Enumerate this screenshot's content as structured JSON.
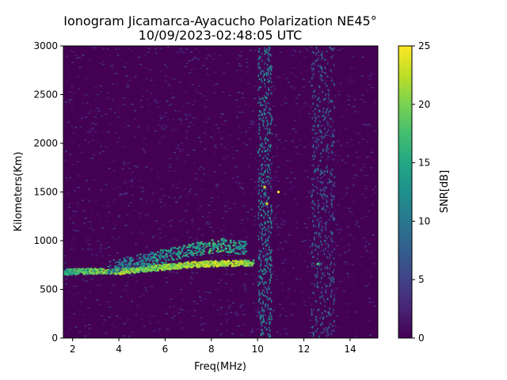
{
  "chart_data": {
    "type": "heatmap",
    "title_line1": "Ionogram Jicamarca-Ayacucho Polarization NE45°",
    "title_line2": "10/09/2023-02:48:05 UTC",
    "xlabel": "Freq(MHz)",
    "ylabel": "Kilometers(Km)",
    "xlim": [
      1.6,
      15.2
    ],
    "ylim": [
      0,
      3000
    ],
    "x_ticks": [
      2,
      4,
      6,
      8,
      10,
      12,
      14
    ],
    "y_ticks": [
      0,
      500,
      1000,
      1500,
      2000,
      2500,
      3000
    ],
    "colorbar": {
      "label": "SNR[dB]",
      "range": [
        0,
        25
      ],
      "ticks": [
        0,
        5,
        10,
        15,
        20,
        25
      ],
      "colormap": "viridis"
    },
    "background_snr_db": [
      0,
      5
    ],
    "traces": [
      {
        "x": [
          1.6,
          2.0,
          3.0,
          4.0,
          5.0,
          6.0,
          7.0,
          8.0,
          9.0,
          9.8
        ],
        "y": [
          680,
          690,
          695,
          690,
          715,
          735,
          760,
          770,
          775,
          780
        ],
        "snr_db": [
          17,
          20,
          22,
          24,
          22,
          23,
          24,
          25,
          25,
          22
        ]
      },
      {
        "x": [
          3.5,
          4.5,
          5.5,
          6.5,
          7.5,
          8.5,
          9.5
        ],
        "y": [
          730,
          780,
          830,
          880,
          930,
          960,
          930
        ],
        "snr_db": [
          14,
          16,
          17,
          18,
          19,
          20,
          17
        ]
      }
    ],
    "vertical_bands": [
      {
        "x": [
          10.0,
          10.6
        ],
        "snr_db": [
          6,
          14
        ]
      },
      {
        "x": [
          12.3,
          13.3
        ],
        "snr_db": [
          4,
          10
        ]
      }
    ],
    "hot_spots": [
      {
        "x": 10.3,
        "y": 1550,
        "snr_db": 24
      },
      {
        "x": 10.4,
        "y": 1380,
        "snr_db": 24
      },
      {
        "x": 10.9,
        "y": 1500,
        "snr_db": 24
      },
      {
        "x": 12.6,
        "y": 760,
        "snr_db": 18
      }
    ],
    "grid": false
  },
  "colors": {
    "low": "#440154",
    "high": "#fde725"
  }
}
